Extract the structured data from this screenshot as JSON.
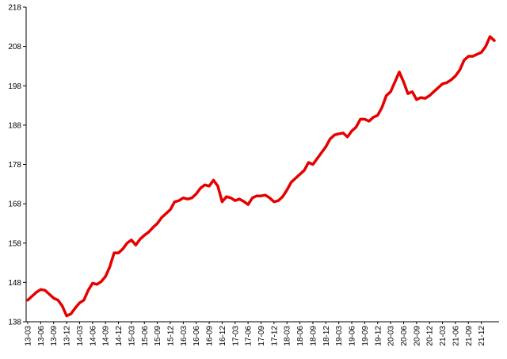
{
  "chart_data": {
    "type": "line",
    "categories": [
      "13-03",
      null,
      null,
      "13-06",
      null,
      null,
      "13-09",
      null,
      null,
      "13-12",
      null,
      null,
      "14-03",
      null,
      null,
      "14-06",
      null,
      null,
      "14-09",
      null,
      null,
      "14-12",
      null,
      null,
      "15-03",
      null,
      null,
      "15-06",
      null,
      null,
      "15-09",
      null,
      null,
      "15-12",
      null,
      null,
      "16-03",
      null,
      null,
      "16-06",
      null,
      null,
      "16-09",
      null,
      null,
      "16-12",
      null,
      null,
      "17-03",
      null,
      null,
      "17-06",
      null,
      null,
      "17-09",
      null,
      null,
      "17-12",
      null,
      null,
      "18-03",
      null,
      null,
      "18-06",
      null,
      null,
      "18-09",
      null,
      null,
      "18-12",
      null,
      null,
      "19-03",
      null,
      null,
      "19-06",
      null,
      null,
      "19-09",
      null,
      null,
      "19-12",
      null,
      null,
      "20-03",
      null,
      null,
      "20-06",
      null,
      null,
      "20-09",
      null,
      null,
      "20-12",
      null,
      null,
      "21-03",
      null,
      null,
      "21-06",
      null,
      null,
      "21-09",
      null,
      null,
      "21-12",
      null,
      null,
      null
    ],
    "series": [
      {
        "color": "#e60000",
        "values": [
          143.5,
          144.5,
          145.5,
          146.2,
          146,
          145,
          144,
          143.5,
          142,
          139.5,
          140,
          141.5,
          142.8,
          143.5,
          146,
          147.8,
          147.5,
          148.2,
          149.5,
          152,
          155.5,
          155.5,
          156.5,
          158,
          158.8,
          157.5,
          159,
          160,
          160.8,
          162,
          163,
          164.5,
          165.5,
          166.5,
          168.5,
          168.8,
          169.5,
          169.2,
          169.5,
          170.5,
          172,
          172.8,
          172.5,
          174,
          172.5,
          168.5,
          169.8,
          169.5,
          168.8,
          169.2,
          168.6,
          167.8,
          169.5,
          170,
          170,
          170.2,
          169.5,
          168.5,
          168.8,
          169.8,
          171.5,
          173.5,
          174.5,
          175.5,
          176.5,
          178.5,
          178,
          179.5,
          181,
          182.5,
          184.5,
          185.5,
          185.8,
          186,
          185,
          186.5,
          187.5,
          189.5,
          189.5,
          189,
          190,
          190.5,
          192.5,
          195.5,
          196.5,
          199,
          201.5,
          199,
          196,
          196.5,
          194.5,
          195,
          194.8,
          195.5,
          196.5,
          197.5,
          198.5,
          198.8,
          199.5,
          200.5,
          202,
          204.5,
          205.5,
          205.5,
          206,
          206.5,
          208,
          210.5,
          209.5
        ]
      }
    ],
    "ylim": [
      138,
      218
    ],
    "yticks": [
      138,
      148,
      158,
      168,
      178,
      188,
      198,
      208,
      218
    ],
    "grid": false
  }
}
